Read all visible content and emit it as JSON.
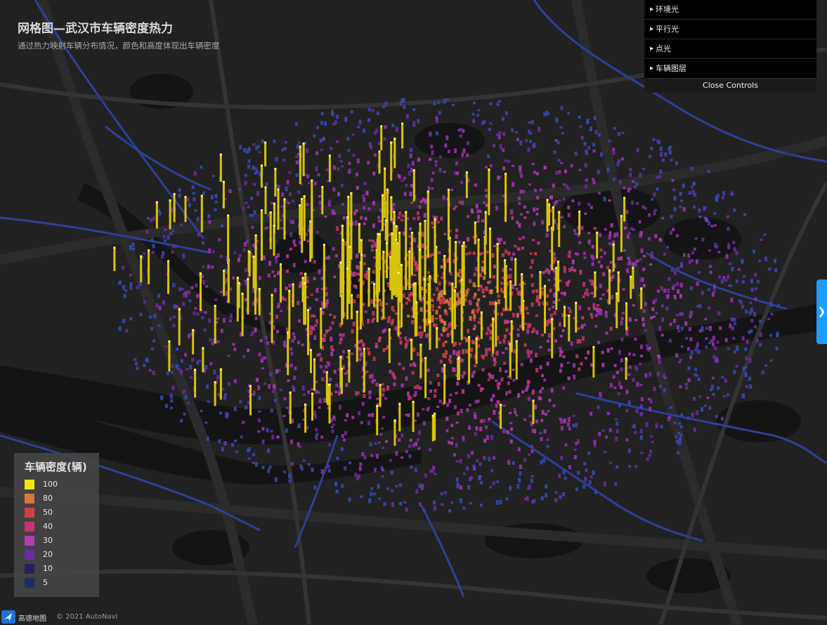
{
  "header": {
    "title": "网格图—武汉市车辆密度热力",
    "subtitle": "通过热力映射车辆分布情况，颜色和高度体现出车辆密度"
  },
  "controls": {
    "items": [
      {
        "label": "环境光"
      },
      {
        "label": "平行光"
      },
      {
        "label": "点光"
      },
      {
        "label": "车辆图层"
      }
    ],
    "close_label": "Close Controls"
  },
  "legend": {
    "title": "车辆密度(辆)",
    "items": [
      {
        "label": "100",
        "color": "#f5e60e"
      },
      {
        "label": "80",
        "color": "#d8783a"
      },
      {
        "label": "50",
        "color": "#d03f3f"
      },
      {
        "label": "40",
        "color": "#c7336f"
      },
      {
        "label": "30",
        "color": "#b33ab3"
      },
      {
        "label": "20",
        "color": "#6b2b9e"
      },
      {
        "label": "10",
        "color": "#2a1f5e"
      },
      {
        "label": "5",
        "color": "#1f2d66"
      }
    ]
  },
  "side_tab": {
    "glyph": "❯"
  },
  "attribution": {
    "brand": "高德地图",
    "copyright": "© 2021 AutoNavi"
  },
  "colors": {
    "background": "#212121",
    "accent": "#1e9bff"
  }
}
